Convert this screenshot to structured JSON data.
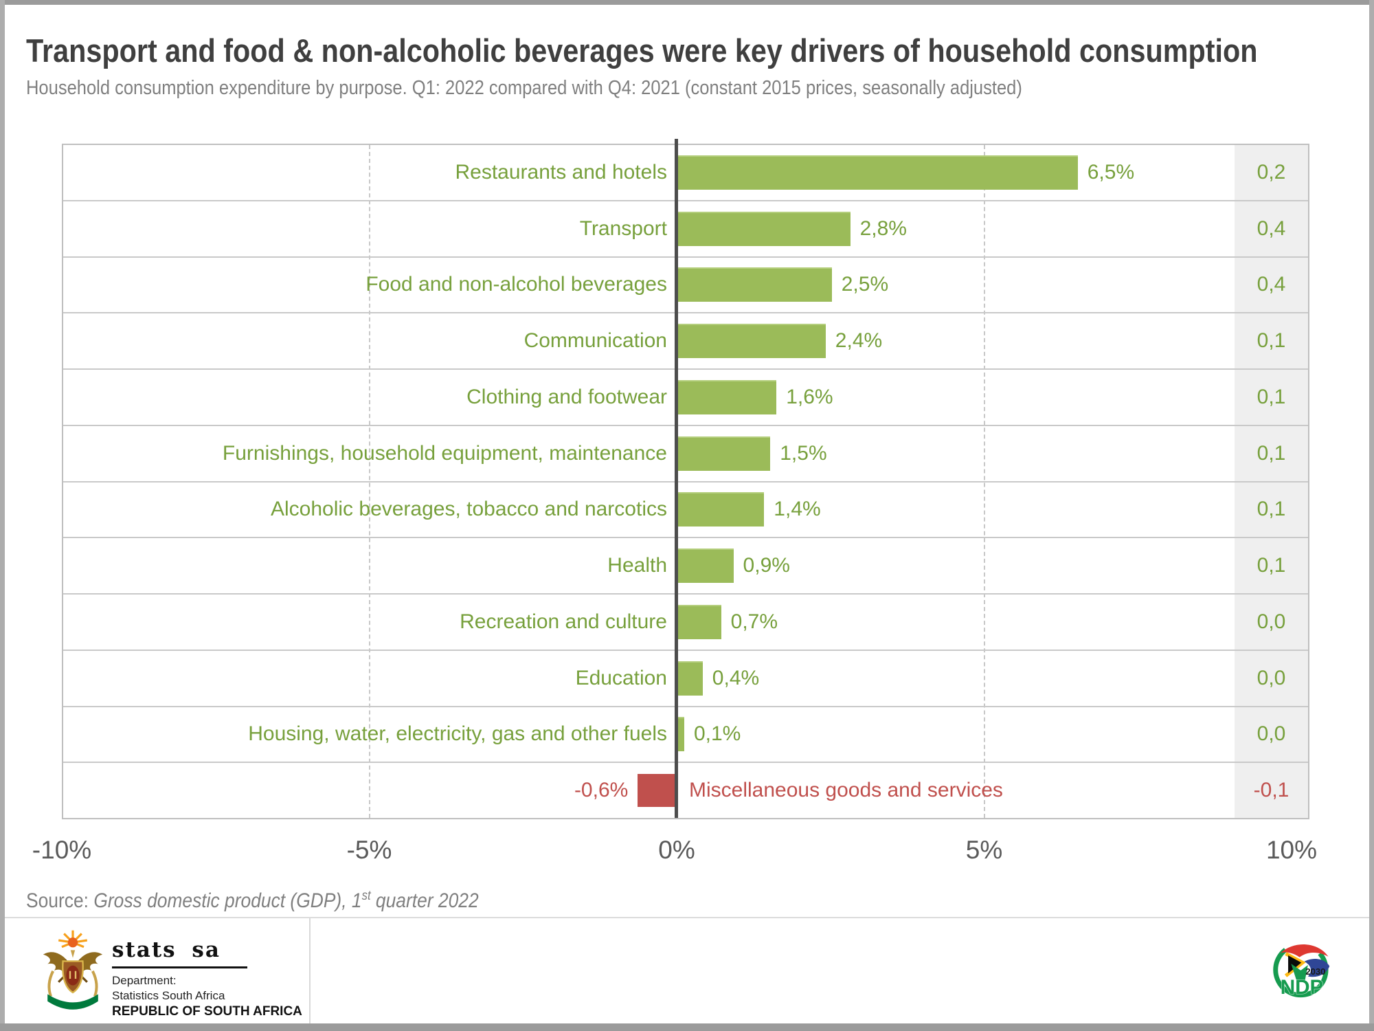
{
  "page": {
    "title": "Transport and food & non-alcoholic beverages were key drivers of household consumption",
    "subtitle": "Household consumption expenditure by purpose. Q1: 2022 compared with Q4: 2021 (constant 2015 prices, seasonally adjusted)"
  },
  "chart_data": {
    "type": "bar",
    "orientation": "horizontal",
    "title": "Household consumption expenditure by purpose, Q1: 2022 vs Q4: 2021, % change",
    "categories": [
      "Restaurants and hotels",
      "Transport",
      "Food and non-alcohol beverages",
      "Communication",
      "Clothing and footwear",
      "Furnishings, household equipment, maintenance",
      "Alcoholic beverages, tobacco and narcotics",
      "Health",
      "Recreation and culture",
      "Education",
      "Housing, water, electricity, gas and other fuels",
      "Miscellaneous goods and services"
    ],
    "values": [
      6.5,
      2.8,
      2.5,
      2.4,
      1.6,
      1.5,
      1.4,
      0.9,
      0.7,
      0.4,
      0.1,
      -0.6
    ],
    "value_labels": [
      "6,5%",
      "2,8%",
      "2,5%",
      "2,4%",
      "1,6%",
      "1,5%",
      "1,4%",
      "0,9%",
      "0,7%",
      "0,4%",
      "0,1%",
      "-0,6%"
    ],
    "contribution_labels": [
      "0,2",
      "0,4",
      "0,4",
      "0,1",
      "0,1",
      "0,1",
      "0,1",
      "0,1",
      "0,0",
      "0,0",
      "0,0",
      "-0,1"
    ],
    "xlim": [
      -10,
      10
    ],
    "xticks": [
      {
        "label": "-10%",
        "value": -10
      },
      {
        "label": "-5%",
        "value": -5
      },
      {
        "label": "0%",
        "value": 0
      },
      {
        "label": "5%",
        "value": 5
      },
      {
        "label": "10%",
        "value": 10
      }
    ],
    "gridlines": [
      -5,
      5
    ],
    "grid_style": "dashed",
    "colors": {
      "bar_positive": "#9bbb59",
      "bar_negative": "#c0504d",
      "label_positive": "#77a03c",
      "label_negative": "#c0504d",
      "zero_axis": "#4d4d4d",
      "value_column_bg": "#efefef"
    }
  },
  "source": {
    "prefix": "Source: ",
    "text_italic": "Gross domestic product (GDP), 1",
    "ordinal_suffix": "st",
    "text_italic_2": " quarter 2022"
  },
  "footer": {
    "statssa": {
      "logotype": "stats sa",
      "dept_line1": "Department:",
      "dept_line2": "Statistics South Africa",
      "dept_line3": "REPUBLIC OF SOUTH AFRICA"
    },
    "ndp": {
      "year": "2030",
      "acronym": "NDP"
    }
  }
}
